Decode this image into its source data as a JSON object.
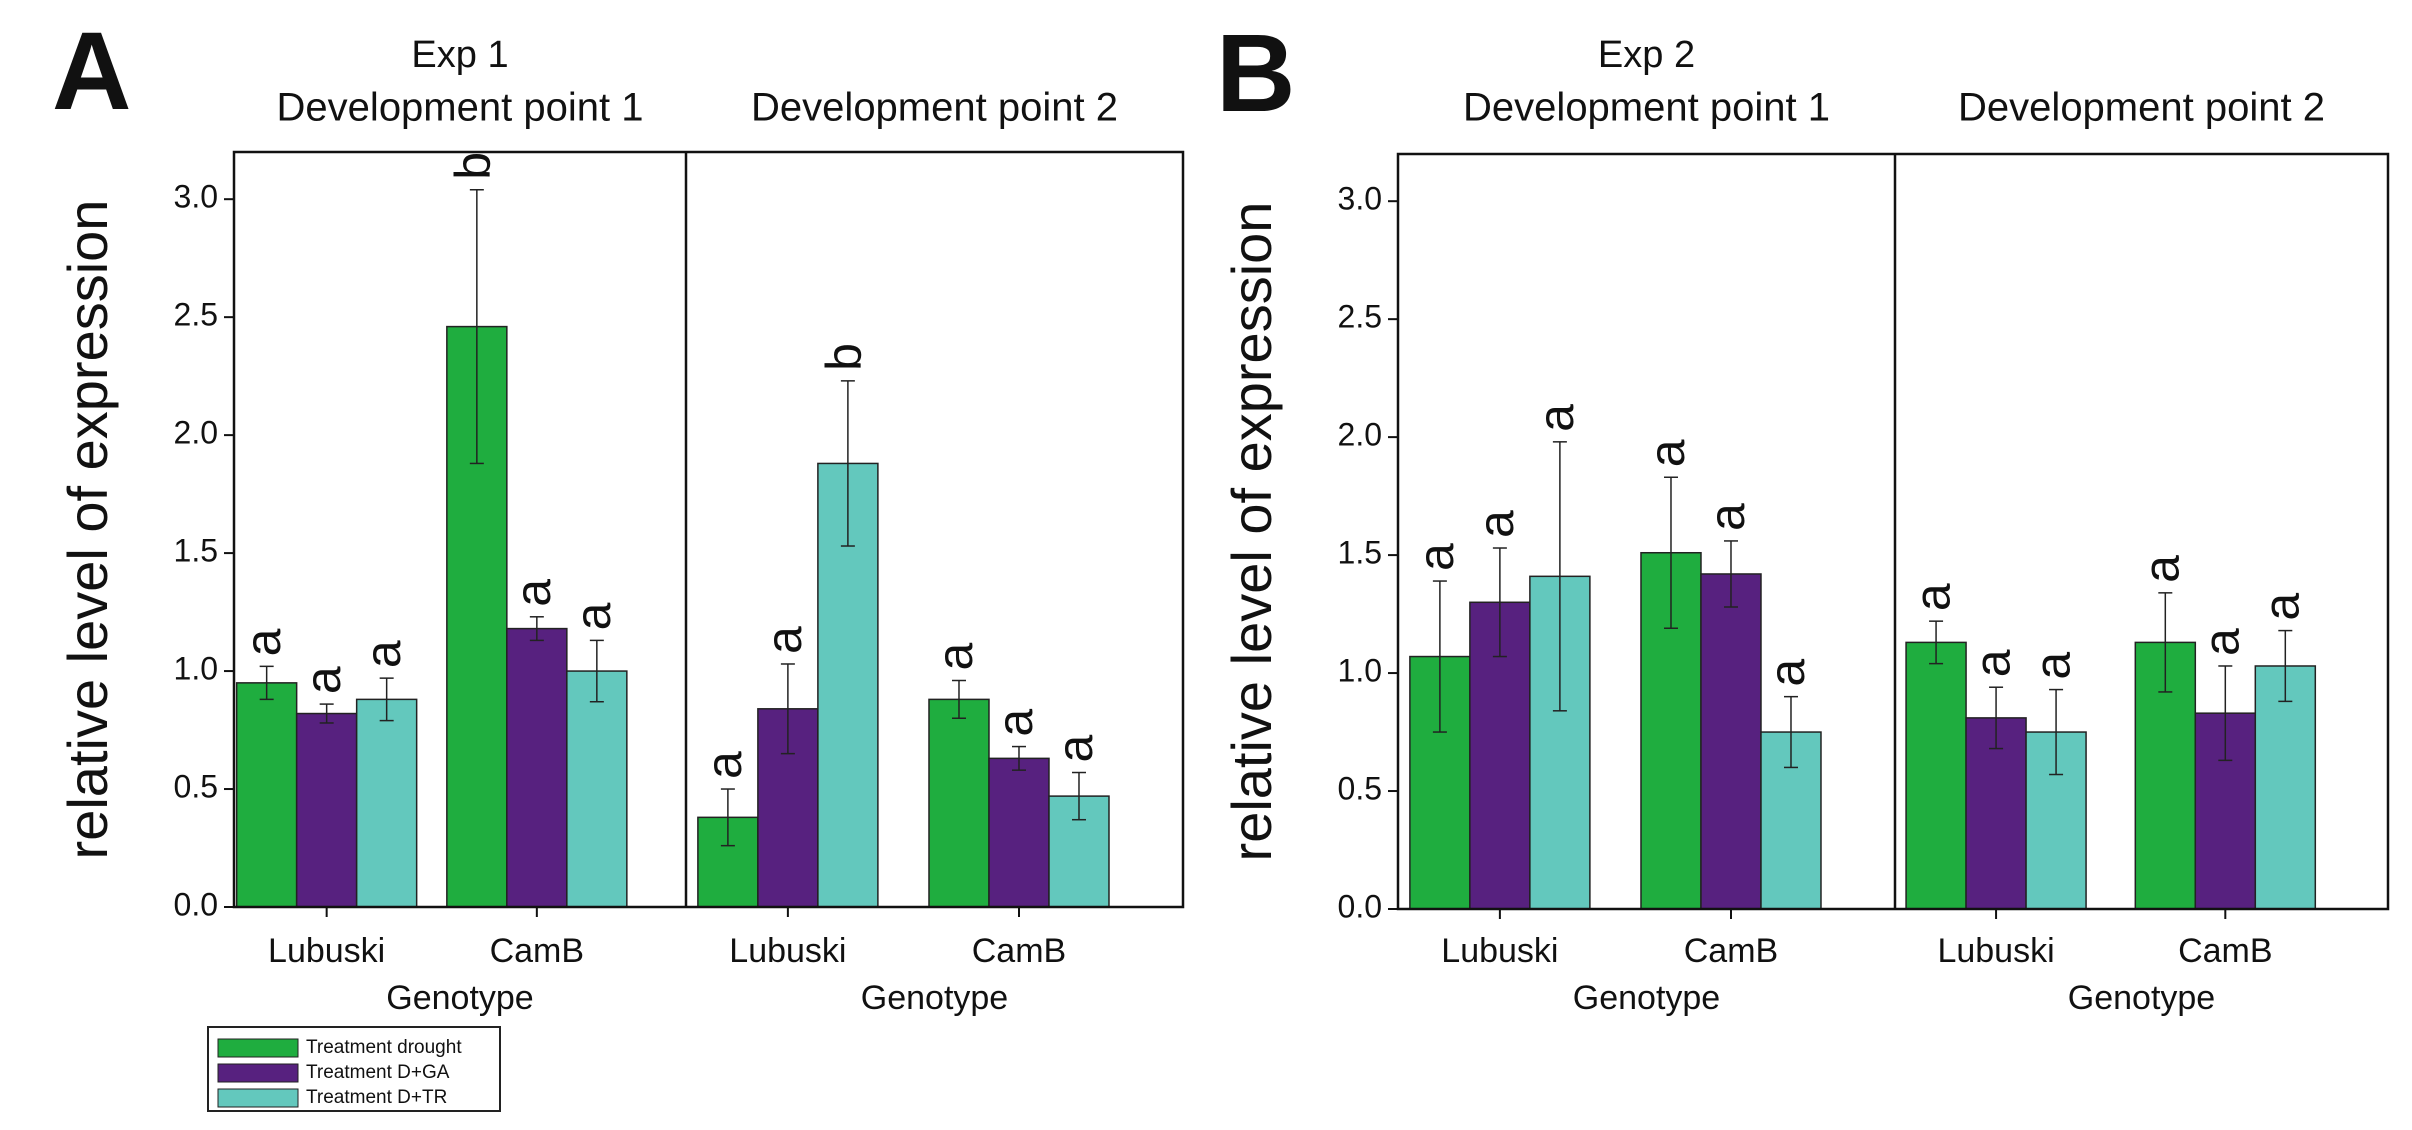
{
  "legend": [
    {
      "name": "Treatment drought",
      "color": "#1fad3f"
    },
    {
      "name": "Treatment D+GA",
      "color": "#57217f"
    },
    {
      "name": "Treatment D+TR",
      "color": "#63c8bd"
    }
  ],
  "chart_data": [
    {
      "type": "bar",
      "panel": "A",
      "title": "Exp 1",
      "ylabel": "relative level of expression",
      "ylim": [
        0,
        3.2
      ],
      "yticks": [
        {
          "value": 0,
          "label": "0.0"
        },
        {
          "value": 0.5,
          "label": "0.5"
        },
        {
          "value": 1,
          "label": "1.0"
        },
        {
          "value": 1.5,
          "label": "1.5"
        },
        {
          "value": 2,
          "label": "2.0"
        },
        {
          "value": 2.5,
          "label": "2.5"
        },
        {
          "value": 3,
          "label": "3.0"
        }
      ],
      "groups": [
        {
          "subtitle": "Development point 1",
          "xlabel": "Genotype",
          "categories": [
            "Lubuski",
            "CamB"
          ],
          "series": [
            {
              "values": [
                0.95,
                2.46
              ],
              "errors": [
                0.07,
                0.58
              ],
              "letters": [
                "a",
                "b"
              ]
            },
            {
              "values": [
                0.82,
                1.18
              ],
              "errors": [
                0.04,
                0.05
              ],
              "letters": [
                "a",
                "a"
              ]
            },
            {
              "values": [
                0.88,
                1.0
              ],
              "errors": [
                0.09,
                0.13
              ],
              "letters": [
                "a",
                "a"
              ]
            }
          ]
        },
        {
          "subtitle": "Development point 2",
          "xlabel": "Genotype",
          "categories": [
            "Lubuski",
            "CamB"
          ],
          "series": [
            {
              "values": [
                0.38,
                0.88
              ],
              "errors": [
                0.12,
                0.08
              ],
              "letters": [
                "a",
                "a"
              ]
            },
            {
              "values": [
                0.84,
                0.63
              ],
              "errors": [
                0.19,
                0.05
              ],
              "letters": [
                "a",
                "a"
              ]
            },
            {
              "values": [
                1.88,
                0.47
              ],
              "errors": [
                0.35,
                0.1
              ],
              "letters": [
                "b",
                "a"
              ]
            }
          ]
        }
      ]
    },
    {
      "type": "bar",
      "panel": "B",
      "title": "Exp 2",
      "ylabel": "relative level of expression",
      "ylim": [
        0,
        3.2
      ],
      "yticks": [
        {
          "value": 0,
          "label": "0.0"
        },
        {
          "value": 0.5,
          "label": "0.5"
        },
        {
          "value": 1,
          "label": "1.0"
        },
        {
          "value": 1.5,
          "label": "1.5"
        },
        {
          "value": 2,
          "label": "2.0"
        },
        {
          "value": 2.5,
          "label": "2.5"
        },
        {
          "value": 3,
          "label": "3.0"
        }
      ],
      "groups": [
        {
          "subtitle": "Development point 1",
          "xlabel": "Genotype",
          "categories": [
            "Lubuski",
            "CamB"
          ],
          "series": [
            {
              "values": [
                1.07,
                1.51
              ],
              "errors": [
                0.32,
                0.32
              ],
              "letters": [
                "a",
                "a"
              ]
            },
            {
              "values": [
                1.3,
                1.42
              ],
              "errors": [
                0.23,
                0.14
              ],
              "letters": [
                "a",
                "a"
              ]
            },
            {
              "values": [
                1.41,
                0.75
              ],
              "errors": [
                0.57,
                0.15
              ],
              "letters": [
                "a",
                "a"
              ]
            }
          ]
        },
        {
          "subtitle": "Development point 2",
          "xlabel": "Genotype",
          "categories": [
            "Lubuski",
            "CamB"
          ],
          "series": [
            {
              "values": [
                1.13,
                1.13
              ],
              "errors": [
                0.09,
                0.21
              ],
              "letters": [
                "a",
                "a"
              ]
            },
            {
              "values": [
                0.81,
                0.83
              ],
              "errors": [
                0.13,
                0.2
              ],
              "letters": [
                "a",
                "a"
              ]
            },
            {
              "values": [
                0.75,
                1.03
              ],
              "errors": [
                0.18,
                0.15
              ],
              "letters": [
                "a",
                "a"
              ]
            }
          ]
        }
      ]
    }
  ]
}
